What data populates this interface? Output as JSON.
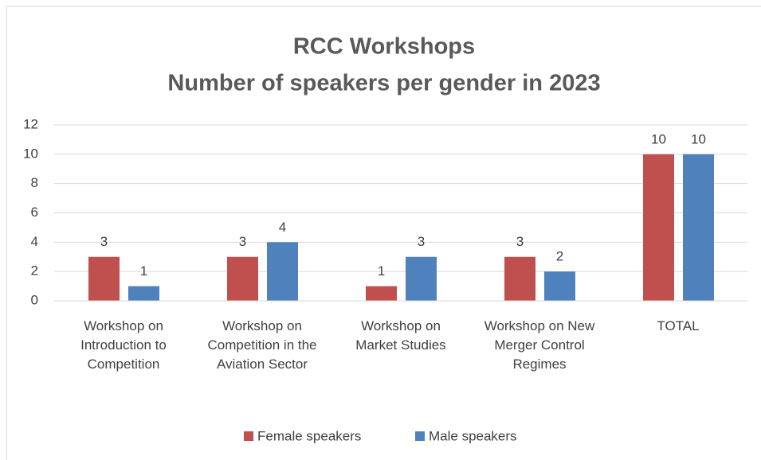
{
  "chart_data": {
    "type": "bar",
    "title": "RCC Workshops",
    "subtitle": "Number of speakers per gender in 2023",
    "categories": [
      "Workshop on Introduction to Competition",
      "Workshop on Competition in the Aviation Sector",
      "Workshop on Market Studies",
      "Workshop on New Merger Control Regimes",
      "TOTAL"
    ],
    "series": [
      {
        "name": "Female speakers",
        "color": "#c0504d",
        "values": [
          3,
          3,
          1,
          3,
          10
        ]
      },
      {
        "name": "Male speakers",
        "color": "#4f81bd",
        "values": [
          1,
          4,
          3,
          2,
          10
        ]
      }
    ],
    "ylim": [
      0,
      12
    ],
    "yticks": [
      0,
      2,
      4,
      6,
      8,
      10,
      12
    ],
    "grid": true,
    "legend": "bottom"
  }
}
